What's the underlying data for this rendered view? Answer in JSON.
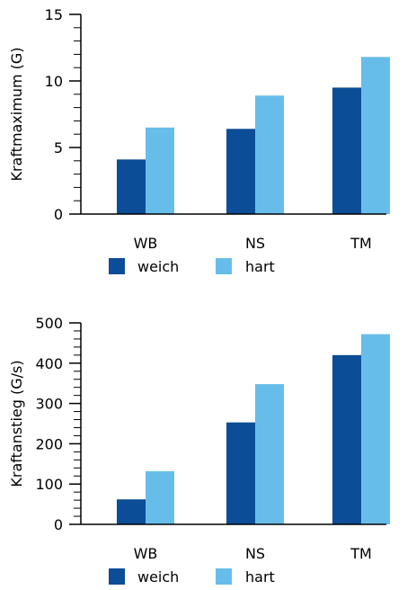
{
  "colors": {
    "weich": "#0b4d96",
    "hart": "#67bde9",
    "axis": "#000000"
  },
  "chart_data": [
    {
      "type": "bar",
      "title": "",
      "xlabel": "",
      "ylabel": "Kraftmaximum (G)",
      "categories": [
        "WB",
        "NS",
        "TM"
      ],
      "series": [
        {
          "name": "weich",
          "values": [
            4.1,
            6.4,
            9.5
          ]
        },
        {
          "name": "hart",
          "values": [
            6.5,
            8.9,
            11.8
          ]
        }
      ],
      "ylim": [
        0,
        15
      ],
      "major_ticks": [
        0,
        5,
        10,
        15
      ],
      "minor_tick_step": 1,
      "legend_position": "bottom",
      "grid": false
    },
    {
      "type": "bar",
      "title": "",
      "xlabel": "",
      "ylabel": "Kraftanstieg (G/s)",
      "categories": [
        "WB",
        "NS",
        "TM"
      ],
      "series": [
        {
          "name": "weich",
          "values": [
            62,
            253,
            420
          ]
        },
        {
          "name": "hart",
          "values": [
            132,
            348,
            472
          ]
        }
      ],
      "ylim": [
        0,
        500
      ],
      "major_ticks": [
        0,
        100,
        200,
        300,
        400,
        500
      ],
      "minor_tick_step": 20,
      "legend_position": "bottom",
      "grid": false
    }
  ]
}
